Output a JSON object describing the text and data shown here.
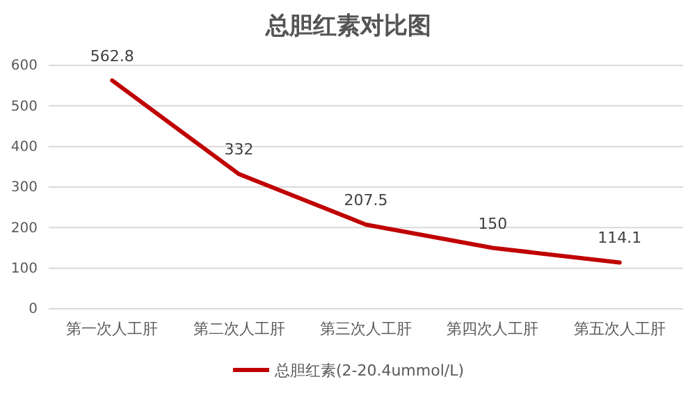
{
  "chart_data": {
    "type": "line",
    "title": "总胆红素对比图",
    "categories": [
      "第一次人工肝",
      "第二次人工肝",
      "第三次人工肝",
      "第四次人工肝",
      "第五次人工肝"
    ],
    "series": [
      {
        "name": "总胆红素(2-20.4ummol/L)",
        "color": "#c00000",
        "values": [
          562.8,
          332,
          207.5,
          150,
          114.1
        ]
      }
    ],
    "ylim": [
      0,
      600
    ],
    "yticks": [
      0,
      100,
      200,
      300,
      400,
      500,
      600
    ],
    "grid": "y",
    "legend": "bottom",
    "data_labels": true,
    "marker": "none",
    "line_style": "solid"
  }
}
